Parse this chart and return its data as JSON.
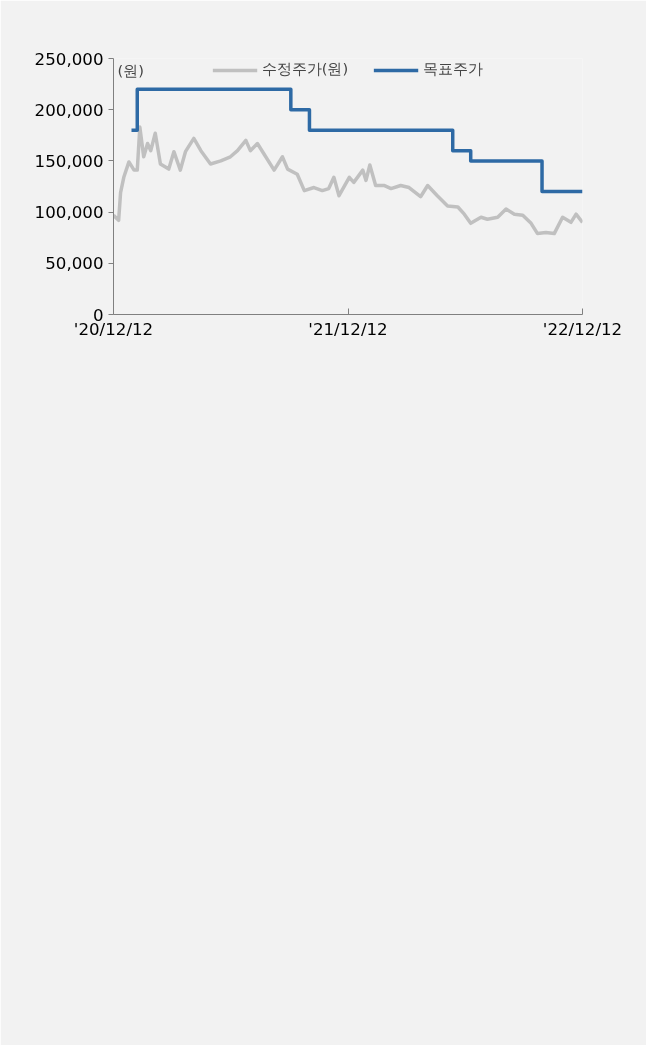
{
  "chart_data": {
    "type": "line",
    "annotations": [
      "(원)"
    ],
    "legend": "top",
    "xlim": [
      "2020-12-12",
      "2022-12-12"
    ],
    "xticks": [
      {
        "value": "2020-12-12",
        "label": "'20/12/12"
      },
      {
        "value": "2021-12-12",
        "label": "'21/12/12"
      },
      {
        "value": "2022-12-12",
        "label": "'22/12/12"
      }
    ],
    "ylim": [
      0,
      250000
    ],
    "yticks": [
      {
        "value": 0,
        "label": "0"
      },
      {
        "value": 50000,
        "label": "50,000"
      },
      {
        "value": 100000,
        "label": "100,000"
      },
      {
        "value": 150000,
        "label": "150,000"
      },
      {
        "value": 200000,
        "label": "200,000"
      },
      {
        "value": 250000,
        "label": "250,000"
      }
    ],
    "grid": false,
    "series": [
      {
        "name": "수정주가(원)",
        "type": "line",
        "color": "#c0c0c0",
        "x": [
          "2020-12-12",
          "2020-12-20",
          "2020-12-23",
          "2020-12-28",
          "2021-01-05",
          "2021-01-13",
          "2021-01-18",
          "2021-01-22",
          "2021-01-28",
          "2021-02-03",
          "2021-02-08",
          "2021-02-15",
          "2021-02-23",
          "2021-03-08",
          "2021-03-16",
          "2021-03-26",
          "2021-04-03",
          "2021-04-16",
          "2021-04-27",
          "2021-05-12",
          "2021-05-28",
          "2021-06-12",
          "2021-06-23",
          "2021-07-06",
          "2021-07-13",
          "2021-07-24",
          "2021-08-03",
          "2021-08-19",
          "2021-09-01",
          "2021-09-09",
          "2021-09-24",
          "2021-10-05",
          "2021-10-20",
          "2021-11-02",
          "2021-11-12",
          "2021-11-20",
          "2021-11-28",
          "2021-12-14",
          "2021-12-21",
          "2022-01-04",
          "2022-01-09",
          "2022-01-15",
          "2022-01-24",
          "2022-02-06",
          "2022-02-17",
          "2022-03-04",
          "2022-03-17",
          "2022-04-04",
          "2022-04-15",
          "2022-04-30",
          "2022-05-16",
          "2022-06-01",
          "2022-06-11",
          "2022-06-21",
          "2022-07-07",
          "2022-07-17",
          "2022-08-02",
          "2022-08-15",
          "2022-08-28",
          "2022-09-10",
          "2022-09-23",
          "2022-10-03",
          "2022-10-16",
          "2022-10-29",
          "2022-11-11",
          "2022-11-24",
          "2022-12-02",
          "2022-12-12"
        ],
        "values": [
          97000,
          92000,
          119000,
          134000,
          149000,
          141000,
          141000,
          183000,
          154000,
          167000,
          160000,
          177000,
          147000,
          142000,
          159000,
          141000,
          159000,
          172000,
          160000,
          147000,
          150000,
          154000,
          160000,
          170000,
          160000,
          167000,
          157000,
          141000,
          154000,
          142000,
          137000,
          121000,
          124000,
          121000,
          123000,
          134000,
          116000,
          134000,
          129000,
          141000,
          131000,
          146000,
          126000,
          126000,
          123000,
          126000,
          124000,
          115000,
          126000,
          116000,
          106000,
          105000,
          98000,
          89000,
          95000,
          93000,
          95000,
          103000,
          98000,
          97000,
          89000,
          79000,
          80000,
          79000,
          95000,
          90000,
          98000,
          90000
        ]
      },
      {
        "name": "목표주가",
        "type": "step",
        "color": "#2e6aa5",
        "x": [
          "2021-01-09",
          "2021-01-18",
          "2021-09-14",
          "2021-10-13",
          "2022-05-24",
          "2022-06-21",
          "2022-10-10",
          "2022-12-12"
        ],
        "values": [
          180000,
          220000,
          200000,
          180000,
          160000,
          150000,
          120000,
          120000
        ]
      }
    ]
  }
}
